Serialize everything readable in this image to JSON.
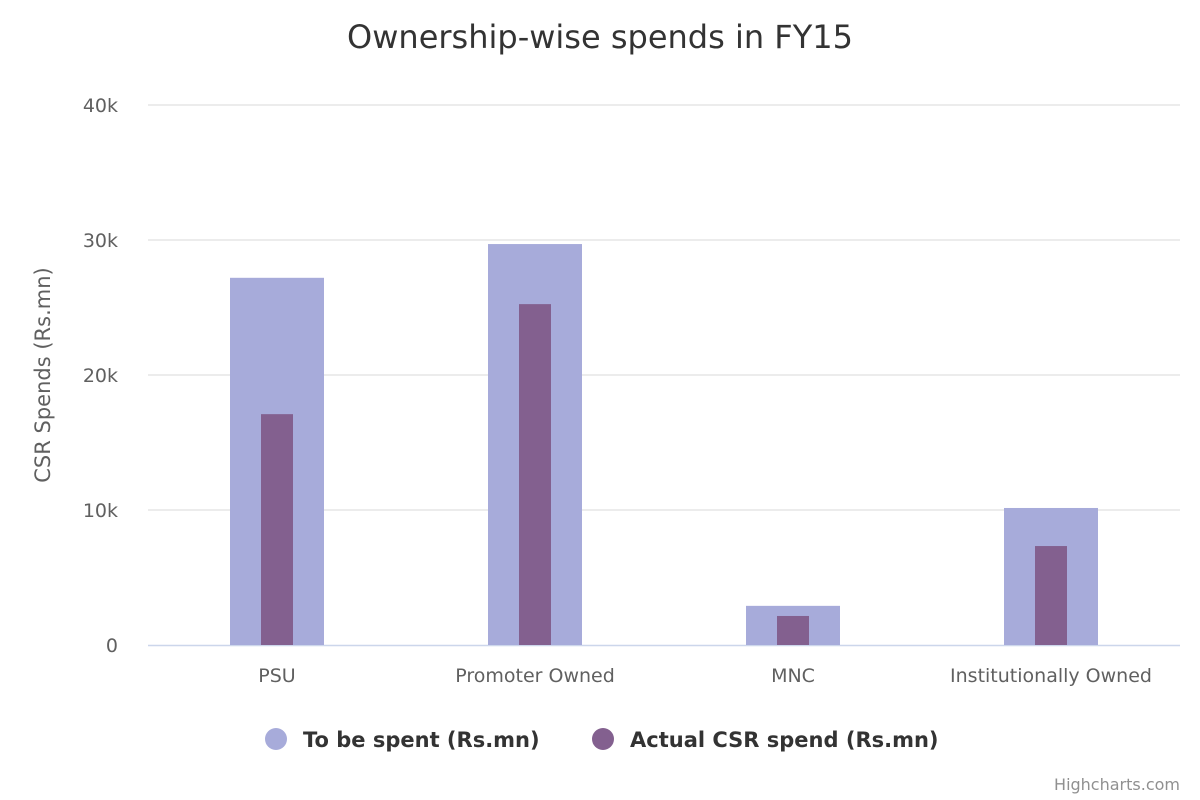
{
  "chart_data": {
    "type": "bar",
    "title": "Ownership-wise spends in FY15",
    "xlabel": "",
    "ylabel": "CSR Spends (Rs.mn)",
    "ylim": [
      0,
      40000
    ],
    "yticks": [
      0,
      10000,
      20000,
      30000,
      40000
    ],
    "ytick_labels": [
      "0",
      "10k",
      "20k",
      "30k",
      "40k"
    ],
    "grid": true,
    "categories": [
      "PSU",
      "Promoter Owned",
      "MNC",
      "Institutionally Owned"
    ],
    "series": [
      {
        "name": "To be spent (Rs.mn)",
        "values": [
          27200,
          29700,
          2900,
          10150
        ],
        "color": "#a7abda"
      },
      {
        "name": "Actual CSR spend (Rs.mn)",
        "values": [
          17100,
          25250,
          2150,
          7330
        ],
        "color": "#83608f"
      }
    ],
    "legend_position": "bottom",
    "credits": "Highcharts.com"
  }
}
